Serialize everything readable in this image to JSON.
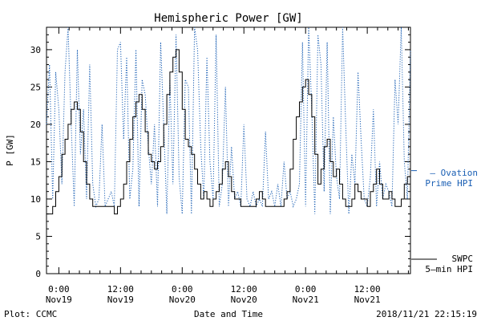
{
  "chart_data": {
    "type": "line",
    "title": "Hemispheric Power [GW]",
    "ylabel": "P [GW]",
    "xlabel": "Date and Time",
    "ylim": [
      0,
      33
    ],
    "yticks": [
      0,
      5,
      10,
      15,
      20,
      25,
      30
    ],
    "xlim_hours": [
      -2.4,
      68.4
    ],
    "xticks": [
      {
        "hour": 0,
        "line1": "0:00",
        "line2": "Nov19"
      },
      {
        "hour": 12,
        "line1": "12:00",
        "line2": "Nov19"
      },
      {
        "hour": 24,
        "line1": "0:00",
        "line2": "Nov20"
      },
      {
        "hour": 36,
        "line1": "12:00",
        "line2": "Nov20"
      },
      {
        "hour": 48,
        "line1": "0:00",
        "line2": "Nov21"
      },
      {
        "hour": 60,
        "line1": "12:00",
        "line2": "Nov21"
      }
    ],
    "legend_placement": "right",
    "series": [
      {
        "name": "Ovation Prime HPI",
        "name_lines": [
          "— Ovation",
          "Prime HPI"
        ],
        "color": "#1a5fb4",
        "style": "dotted",
        "x": [
          -2.4,
          -1.8,
          -1.2,
          -0.6,
          0,
          0.6,
          1.2,
          1.8,
          2.4,
          3.0,
          3.6,
          4.2,
          4.8,
          5.4,
          6.0,
          6.6,
          7.2,
          7.8,
          8.4,
          9.0,
          9.6,
          10.2,
          10.8,
          11.4,
          12.0,
          12.6,
          13.2,
          13.8,
          14.4,
          15.0,
          15.6,
          16.2,
          16.8,
          17.4,
          18.0,
          18.6,
          19.2,
          19.8,
          20.4,
          21.0,
          21.6,
          22.2,
          22.8,
          23.4,
          24.0,
          24.6,
          25.2,
          25.8,
          26.4,
          27.0,
          27.6,
          28.2,
          28.8,
          29.4,
          30.0,
          30.6,
          31.2,
          31.8,
          32.4,
          33.0,
          33.6,
          34.2,
          34.8,
          35.4,
          36.0,
          36.6,
          37.2,
          37.8,
          38.4,
          39.0,
          39.6,
          40.2,
          40.8,
          41.4,
          42.0,
          42.6,
          43.2,
          43.8,
          44.4,
          45.0,
          45.6,
          46.2,
          46.8,
          47.4,
          48.0,
          48.6,
          49.2,
          49.8,
          50.4,
          51.0,
          51.6,
          52.2,
          52.8,
          53.4,
          54.0,
          54.6,
          55.2,
          55.8,
          56.4,
          57.0,
          57.6,
          58.2,
          58.8,
          59.4,
          60.0,
          60.6,
          61.2,
          61.8,
          62.4,
          63.0,
          63.6,
          64.2,
          64.8,
          65.4,
          66.0,
          66.6,
          67.2,
          67.8,
          68.4
        ],
        "values": [
          20,
          28,
          10,
          27,
          22,
          12,
          27,
          33,
          20,
          9,
          30,
          16,
          22,
          10,
          28,
          12,
          9,
          10,
          20,
          9,
          10,
          11,
          9,
          30,
          31,
          18,
          29,
          10,
          14,
          30,
          9,
          26,
          24,
          17,
          12,
          20,
          9,
          31,
          20,
          8,
          26,
          12,
          32,
          13,
          8,
          26,
          25,
          8,
          33,
          30,
          17,
          10,
          29,
          15,
          10,
          32,
          9,
          12,
          25,
          9,
          17,
          10,
          11,
          9,
          20,
          10,
          9,
          11,
          9,
          10,
          9,
          19,
          10,
          11,
          9,
          12,
          9,
          15,
          10,
          11,
          9,
          10,
          12,
          31,
          9,
          33,
          22,
          8,
          32,
          28,
          11,
          31,
          8,
          21,
          13,
          10,
          33,
          20,
          8,
          16,
          12,
          27,
          18,
          10,
          9,
          13,
          22,
          9,
          15,
          10,
          12,
          11,
          9,
          26,
          20,
          33,
          15,
          10,
          30
        ]
      },
      {
        "name": "SWPC 5-min HPI",
        "name_lines": [
          "SWPC",
          "5—min HPI"
        ],
        "color": "#000000",
        "style": "solid",
        "x": [
          -2.4,
          -1.8,
          -1.2,
          -0.6,
          0,
          0.6,
          1.2,
          1.8,
          2.4,
          3.0,
          3.6,
          4.2,
          4.8,
          5.4,
          6.0,
          6.6,
          7.2,
          7.8,
          8.4,
          9.0,
          9.6,
          10.2,
          10.8,
          11.4,
          12.0,
          12.6,
          13.2,
          13.8,
          14.4,
          15.0,
          15.6,
          16.2,
          16.8,
          17.4,
          18.0,
          18.6,
          19.2,
          19.8,
          20.4,
          21.0,
          21.6,
          22.2,
          22.8,
          23.4,
          24.0,
          24.6,
          25.2,
          25.8,
          26.4,
          27.0,
          27.6,
          28.2,
          28.8,
          29.4,
          30.0,
          30.6,
          31.2,
          31.8,
          32.4,
          33.0,
          33.6,
          34.2,
          34.8,
          35.4,
          36.0,
          36.6,
          37.2,
          37.8,
          38.4,
          39.0,
          39.6,
          40.2,
          40.8,
          41.4,
          42.0,
          42.6,
          43.2,
          43.8,
          44.4,
          45.0,
          45.6,
          46.2,
          46.8,
          47.4,
          48.0,
          48.6,
          49.2,
          49.8,
          50.4,
          51.0,
          51.6,
          52.2,
          52.8,
          53.4,
          54.0,
          54.6,
          55.2,
          55.8,
          56.4,
          57.0,
          57.6,
          58.2,
          58.8,
          59.4,
          60.0,
          60.6,
          61.2,
          61.8,
          62.4,
          63.0,
          63.6,
          64.2,
          64.8,
          65.4,
          66.0,
          66.6,
          67.2,
          67.8,
          68.4
        ],
        "values": [
          8,
          8,
          9,
          11,
          13,
          16,
          18,
          20,
          22,
          23,
          22,
          19,
          15,
          12,
          10,
          9,
          9,
          9,
          9,
          9,
          9,
          9,
          8,
          9,
          10,
          12,
          15,
          18,
          21,
          23,
          24,
          22,
          19,
          16,
          15,
          14,
          15,
          17,
          20,
          24,
          27,
          29,
          30,
          27,
          22,
          18,
          17,
          16,
          14,
          12,
          10,
          11,
          10,
          9,
          10,
          11,
          12,
          14,
          15,
          13,
          11,
          10,
          10,
          9,
          9,
          9,
          9,
          9,
          10,
          11,
          10,
          9,
          9,
          9,
          9,
          9,
          9,
          10,
          11,
          14,
          18,
          21,
          23,
          25,
          26,
          24,
          21,
          16,
          12,
          14,
          17,
          18,
          15,
          13,
          14,
          12,
          10,
          9,
          9,
          10,
          12,
          11,
          10,
          10,
          9,
          11,
          12,
          14,
          12,
          10,
          10,
          11,
          10,
          9,
          9,
          10,
          12,
          13,
          12
        ]
      }
    ]
  },
  "footer": {
    "credit": "Plot: CCMC",
    "timestamp": "2018/11/21 22:15:19"
  }
}
